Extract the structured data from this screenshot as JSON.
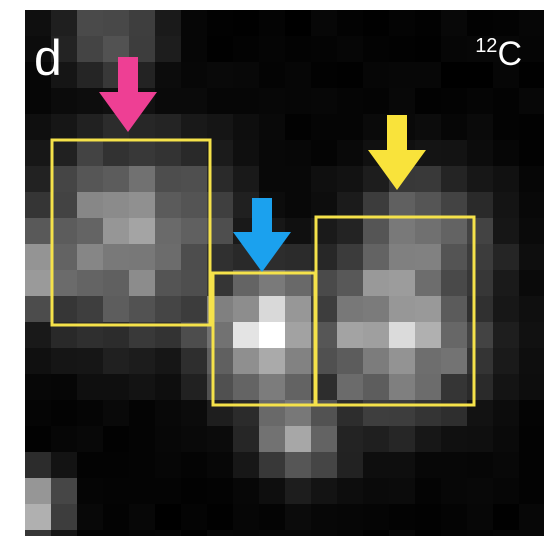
{
  "panel_label": "d",
  "isotope": {
    "mass": "12",
    "element": "C"
  }
}
